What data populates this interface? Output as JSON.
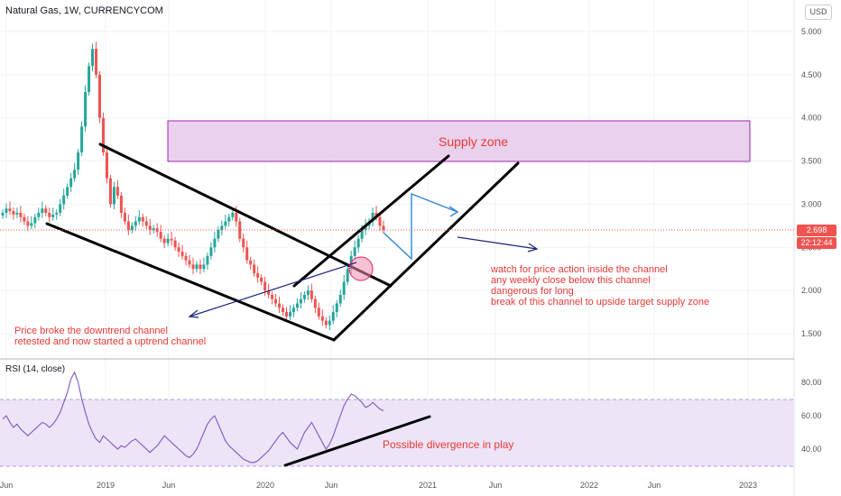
{
  "header": {
    "title": "Natural Gas, 1W, CURRENCYCOM",
    "currency_button": "USD"
  },
  "price_tags": {
    "last_price": "2.698",
    "countdown": "22:12:44"
  },
  "annotations": {
    "supply_zone": "Supply zone",
    "left_note": "Price broke the downtrend channel\nretested and now started a uptrend channel",
    "right_note": "watch for price action inside the channel\nany weekly close below this channel\ndangerous for long\nbreak of this channel to upside target supply zone",
    "rsi_note": "Possible divergence in play"
  },
  "colors": {
    "up": "#26a69a",
    "down": "#ef5350",
    "supply_fill": "#e1bee7",
    "supply_border": "#9c27b0",
    "rsi_line": "#7e57c2",
    "rsi_band": "#ede4f7",
    "annotation": "#e53935",
    "price_tag": "#ef5350",
    "arrow_blue": "#2f86d6",
    "arrow_navy": "#1a237e"
  },
  "chart_data": [
    {
      "type": "candlestick",
      "title": "Natural Gas, 1W, CURRENCYCOM",
      "x_ticks": [
        "Jun",
        "2019",
        "Jun",
        "2020",
        "Jun",
        "2021",
        "Jun",
        "2022",
        "Jun",
        "2023"
      ],
      "y_ticks": [
        "5.000",
        "4.500",
        "4.000",
        "3.500",
        "3.000",
        "2.500",
        "2.000",
        "1.500"
      ],
      "y_range": [
        1.3,
        5.2
      ],
      "last_price": 2.698,
      "supply_zone": [
        3.5,
        3.97
      ],
      "series_close_approx": [
        2.9,
        2.95,
        2.92,
        2.88,
        2.9,
        2.85,
        2.8,
        2.75,
        2.78,
        2.85,
        2.9,
        2.95,
        2.9,
        2.85,
        2.88,
        2.9,
        3.0,
        3.1,
        3.2,
        3.3,
        3.4,
        3.6,
        3.9,
        4.3,
        4.6,
        4.8,
        4.5,
        4.0,
        3.6,
        3.3,
        3.0,
        3.2,
        3.1,
        2.9,
        2.8,
        2.7,
        2.75,
        2.8,
        2.85,
        2.8,
        2.75,
        2.7,
        2.72,
        2.68,
        2.6,
        2.55,
        2.6,
        2.58,
        2.5,
        2.45,
        2.4,
        2.35,
        2.3,
        2.25,
        2.3,
        2.25,
        2.3,
        2.4,
        2.5,
        2.6,
        2.7,
        2.75,
        2.8,
        2.85,
        2.9,
        2.8,
        2.6,
        2.5,
        2.35,
        2.3,
        2.2,
        2.15,
        2.1,
        2.0,
        1.95,
        1.9,
        1.85,
        1.8,
        1.75,
        1.7,
        1.75,
        1.8,
        1.85,
        1.9,
        1.95,
        2.0,
        1.9,
        1.8,
        1.7,
        1.65,
        1.6,
        1.65,
        1.75,
        1.85,
        1.95,
        2.1,
        2.25,
        2.4,
        2.5,
        2.6,
        2.7,
        2.75,
        2.8,
        2.9,
        2.85,
        2.75,
        2.7
      ]
    },
    {
      "type": "line",
      "title": "RSI (14, close)",
      "y_ticks": [
        "80.00",
        "60.00",
        "40.00"
      ],
      "y_range": [
        27,
        90
      ],
      "band": [
        30,
        70
      ],
      "values": [
        58,
        60,
        56,
        53,
        55,
        52,
        50,
        48,
        50,
        52,
        54,
        56,
        55,
        53,
        55,
        58,
        62,
        68,
        74,
        82,
        86,
        80,
        70,
        62,
        55,
        50,
        46,
        44,
        48,
        46,
        44,
        42,
        40,
        42,
        41,
        43,
        45,
        46,
        44,
        42,
        40,
        38,
        40,
        42,
        45,
        48,
        46,
        44,
        42,
        40,
        38,
        36,
        35,
        37,
        40,
        45,
        50,
        55,
        58,
        60,
        55,
        50,
        45,
        42,
        40,
        38,
        36,
        34,
        33,
        32,
        32,
        33,
        35,
        37,
        39,
        42,
        45,
        48,
        50,
        47,
        44,
        42,
        40,
        45,
        50,
        53,
        56,
        52,
        48,
        44,
        40,
        43,
        48,
        54,
        60,
        66,
        70,
        73,
        72,
        70,
        68,
        65,
        66,
        68,
        66,
        64,
        63
      ],
      "annotation": "Possible divergence in play"
    }
  ]
}
